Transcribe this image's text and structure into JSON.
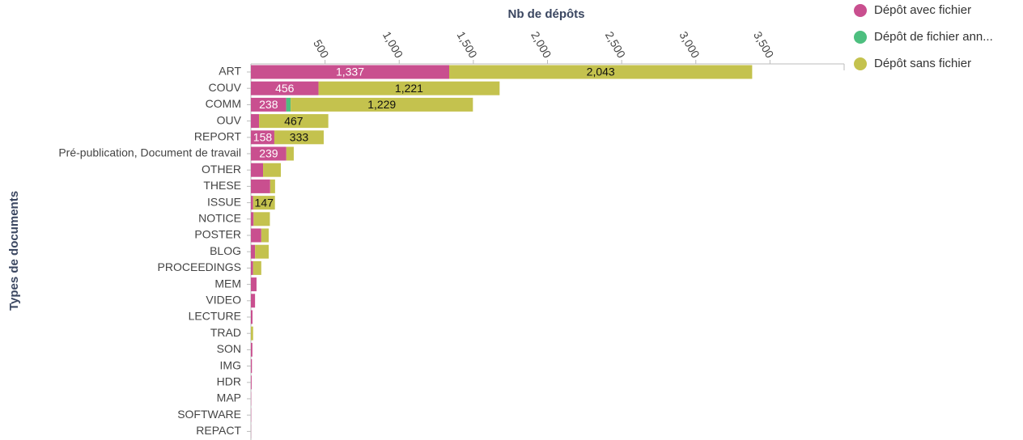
{
  "chart_data": {
    "type": "stacked-bar-horizontal",
    "xlabel": "Nb de dépôts",
    "ylabel": "Types de documents",
    "categories": [
      "ART",
      "COUV",
      "COMM",
      "OUV",
      "REPORT",
      "Pré-publication, Document de travail",
      "OTHER",
      "THESE",
      "ISSUE",
      "NOTICE",
      "POSTER",
      "BLOG",
      "PROCEEDINGS",
      "MEM",
      "VIDEO",
      "LECTURE",
      "TRAD",
      "SON",
      "IMG",
      "HDR",
      "MAP",
      "SOFTWARE",
      "REPACT"
    ],
    "series": [
      {
        "name": "Dépôt avec fichier",
        "color": "#c94f8f",
        "values": [
          1337,
          456,
          238,
          55,
          158,
          239,
          82,
          130,
          15,
          18,
          70,
          28,
          15,
          38,
          28,
          11,
          0,
          10,
          7,
          5,
          2,
          2,
          1
        ],
        "value_labels": [
          "1,337",
          "456",
          "238",
          null,
          "158",
          "239",
          null,
          null,
          null,
          null,
          null,
          null,
          null,
          null,
          null,
          null,
          null,
          null,
          null,
          null,
          null,
          null,
          null
        ]
      },
      {
        "name": "Dépôt de fichier ann...",
        "color": "#4dbf7f",
        "values": [
          0,
          0,
          30,
          0,
          0,
          0,
          0,
          0,
          0,
          0,
          0,
          0,
          0,
          0,
          0,
          0,
          0,
          0,
          0,
          0,
          0,
          0,
          0
        ],
        "value_labels": [
          null,
          null,
          null,
          null,
          null,
          null,
          null,
          null,
          null,
          null,
          null,
          null,
          null,
          null,
          null,
          null,
          null,
          null,
          null,
          null,
          null,
          null,
          null
        ]
      },
      {
        "name": "Dépôt sans fichier",
        "color": "#c4c24e",
        "values": [
          2043,
          1221,
          1229,
          467,
          333,
          50,
          120,
          33,
          147,
          110,
          50,
          92,
          55,
          0,
          0,
          0,
          15,
          0,
          0,
          0,
          0,
          0,
          0
        ],
        "value_labels": [
          "2,043",
          "1,221",
          "1,229",
          "467",
          "333",
          null,
          null,
          null,
          "147",
          null,
          null,
          null,
          null,
          null,
          null,
          null,
          null,
          null,
          null,
          null,
          null,
          null,
          null
        ]
      }
    ],
    "xlim": [
      0,
      4000
    ],
    "xticks": [
      500,
      {
        "value": 1000,
        "label": "1,000"
      },
      {
        "value": 1500,
        "label": "1,500"
      },
      {
        "value": 2000,
        "label": "2,000"
      },
      {
        "value": 2500,
        "label": "2,500"
      },
      {
        "value": 3000,
        "label": "3,000"
      },
      {
        "value": 3500,
        "label": "3,500"
      }
    ],
    "legend": "top-right"
  }
}
